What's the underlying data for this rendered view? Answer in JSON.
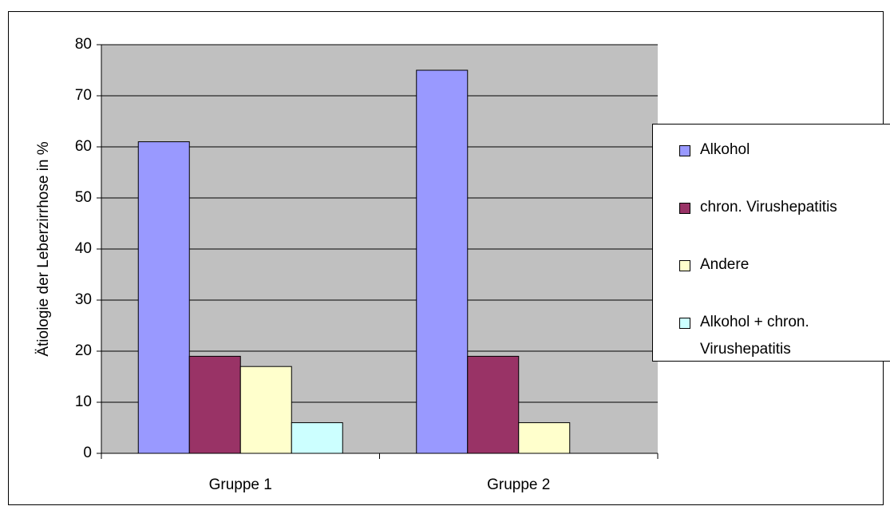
{
  "chart_data": {
    "type": "bar",
    "y_label": "Ätiologie der Leberzirrhose in %",
    "categories": [
      "Gruppe 1",
      "Gruppe 2"
    ],
    "series": [
      {
        "name": "Alkohol",
        "color": "#9999ff",
        "values": [
          61,
          75
        ]
      },
      {
        "name": "chron. Virushepatitis",
        "color": "#993366",
        "values": [
          19,
          19
        ]
      },
      {
        "name": "Andere",
        "color": "#ffffcc",
        "values": [
          17,
          6
        ]
      },
      {
        "name": "Alkohol + chron. Virushepatitis",
        "color": "#ccffff",
        "values": [
          6,
          0
        ]
      }
    ],
    "ylim": [
      0,
      80
    ],
    "yticks": [
      0,
      10,
      20,
      30,
      40,
      50,
      60,
      70,
      80
    ],
    "grid": true,
    "plot_background": "#c0c0c0",
    "legend": "right"
  }
}
